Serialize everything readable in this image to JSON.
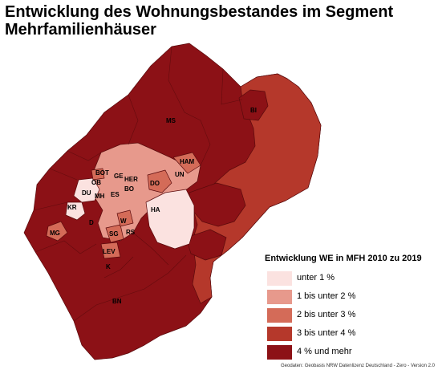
{
  "title": "Entwicklung des Wohnungsbestandes im Segment Mehrfamilienhäuser",
  "colors": {
    "class1": "#fbe2e0",
    "class2": "#e7998c",
    "class3": "#d46b58",
    "class4": "#b5382b",
    "class5": "#8c1116",
    "border": "#5a0a0c"
  },
  "legend": {
    "title": "Entwicklung WE in MFH 2010 zu 2019",
    "items": [
      {
        "label": "unter 1 %",
        "class": "class1"
      },
      {
        "label": "1 bis unter 2 %",
        "class": "class2"
      },
      {
        "label": "2 bis unter 3 %",
        "class": "class3"
      },
      {
        "label": "3 bis unter 4 %",
        "class": "class4"
      },
      {
        "label": "4 % und mehr",
        "class": "class5"
      }
    ]
  },
  "cities": [
    "MS",
    "BI",
    "BOT",
    "GE",
    "HER",
    "HAM",
    "OB",
    "DU",
    "MH",
    "ES",
    "BO",
    "DO",
    "UN",
    "KR",
    "HA",
    "D",
    "W",
    "MG",
    "SG",
    "RS",
    "LEV",
    "K",
    "BN"
  ],
  "source": "Geodaten: Geobasis NRW Datenlizenz Deutschland - Zero - Version 2.0"
}
